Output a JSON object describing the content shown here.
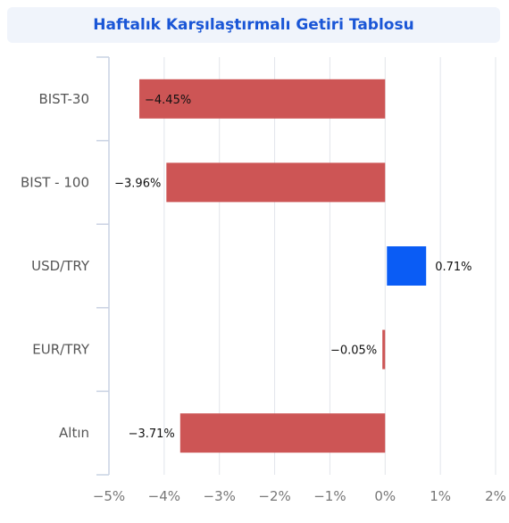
{
  "chart_data": {
    "type": "bar",
    "orientation": "horizontal",
    "title": "Haftalık Karşılaştırmalı Getiri Tablosu",
    "categories": [
      "BIST-30",
      "BIST - 100",
      "USD/TRY",
      "EUR/TRY",
      "Altın"
    ],
    "values": [
      -4.45,
      -3.96,
      0.71,
      -0.05,
      -3.71
    ],
    "data_labels": [
      "−4.45%",
      "−3.96%",
      "0.71%",
      "−0.05%",
      "−3.71%"
    ],
    "xlim": [
      -5,
      2
    ],
    "xticks": [
      -5,
      -4,
      -3,
      -2,
      -1,
      0,
      1,
      2
    ],
    "xtick_labels": [
      "−5%",
      "−4%",
      "−3%",
      "−2%",
      "−1%",
      "0%",
      "1%",
      "2%"
    ],
    "grid": true,
    "colors": {
      "negative": "#cd5555",
      "positive": "#0a5cf5"
    }
  }
}
